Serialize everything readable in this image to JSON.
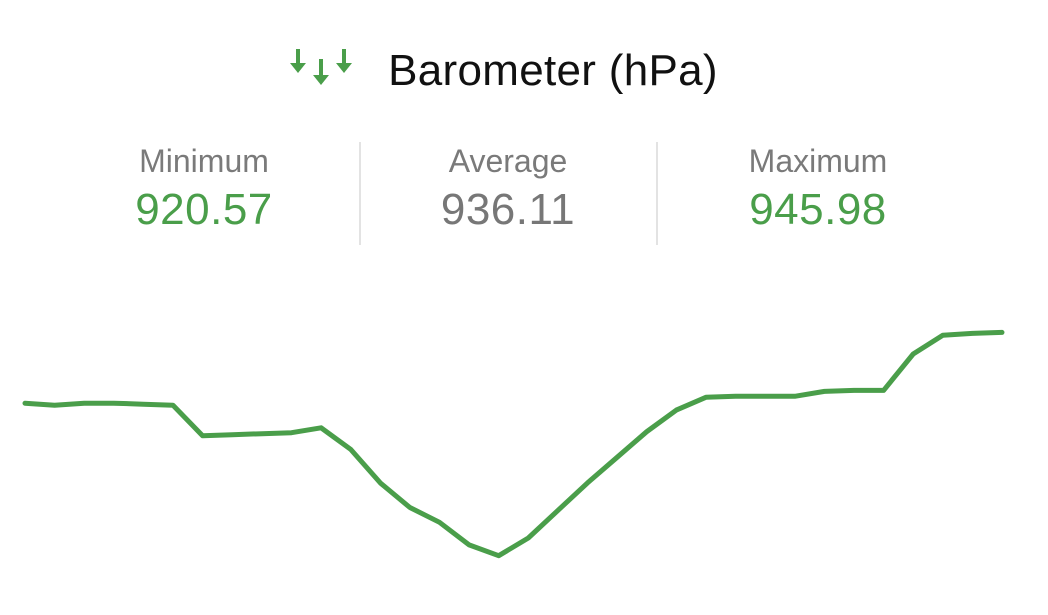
{
  "header": {
    "icon": "pressure-arrows-down-icon",
    "title": "Barometer (hPa)"
  },
  "stats": {
    "minimum": {
      "label": "Minimum",
      "value": "920.57"
    },
    "average": {
      "label": "Average",
      "value": "936.11"
    },
    "maximum": {
      "label": "Maximum",
      "value": "945.98"
    }
  },
  "colors": {
    "accent": "#4a9e4a",
    "neutral_value": "#777777",
    "label": "#7a7a7a",
    "title": "#111111",
    "divider": "#e3e3e3"
  },
  "chart_data": {
    "type": "line",
    "ylim": [
      920.57,
      945.98
    ],
    "y": [
      936.1,
      935.9,
      936.1,
      936.1,
      936.0,
      935.9,
      932.8,
      932.9,
      933.0,
      933.1,
      933.6,
      931.4,
      928.0,
      925.5,
      924.0,
      921.7,
      920.6,
      922.4,
      925.2,
      928.0,
      930.6,
      933.2,
      935.4,
      936.7,
      936.8,
      936.8,
      936.8,
      937.3,
      937.4,
      937.4,
      941.1,
      943.0,
      943.2,
      943.3
    ]
  }
}
